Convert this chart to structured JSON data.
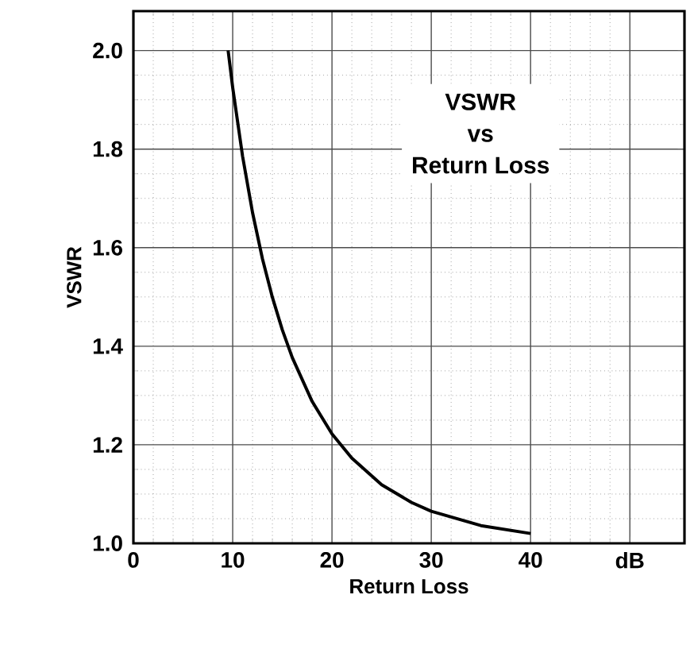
{
  "chart_data": {
    "type": "line",
    "xlabel": "Return Loss",
    "ylabel": "VSWR",
    "x": [
      9.54,
      10,
      11,
      12,
      13,
      14,
      15,
      16,
      18,
      20,
      22,
      25,
      28,
      30,
      35,
      40
    ],
    "series": [
      {
        "color": "#000000",
        "values": [
          2.0,
          1.925,
          1.785,
          1.671,
          1.577,
          1.499,
          1.433,
          1.377,
          1.288,
          1.222,
          1.173,
          1.119,
          1.083,
          1.065,
          1.036,
          1.02
        ]
      }
    ],
    "xlim": [
      0,
      55.5
    ],
    "ylim": [
      1.0,
      2.08
    ],
    "xticks": [
      0,
      10,
      20,
      30,
      40,
      {
        "value": 50,
        "label": "dB"
      }
    ],
    "yticks": [
      {
        "value": 1.0,
        "label": "1.0"
      },
      1.2,
      1.4,
      1.6,
      1.8,
      {
        "value": 2.0,
        "label": "2.0"
      }
    ],
    "grid": true,
    "marker": "none",
    "line_style": "solid",
    "annotations": [
      "VSWR",
      "vs",
      "Return Loss"
    ]
  }
}
